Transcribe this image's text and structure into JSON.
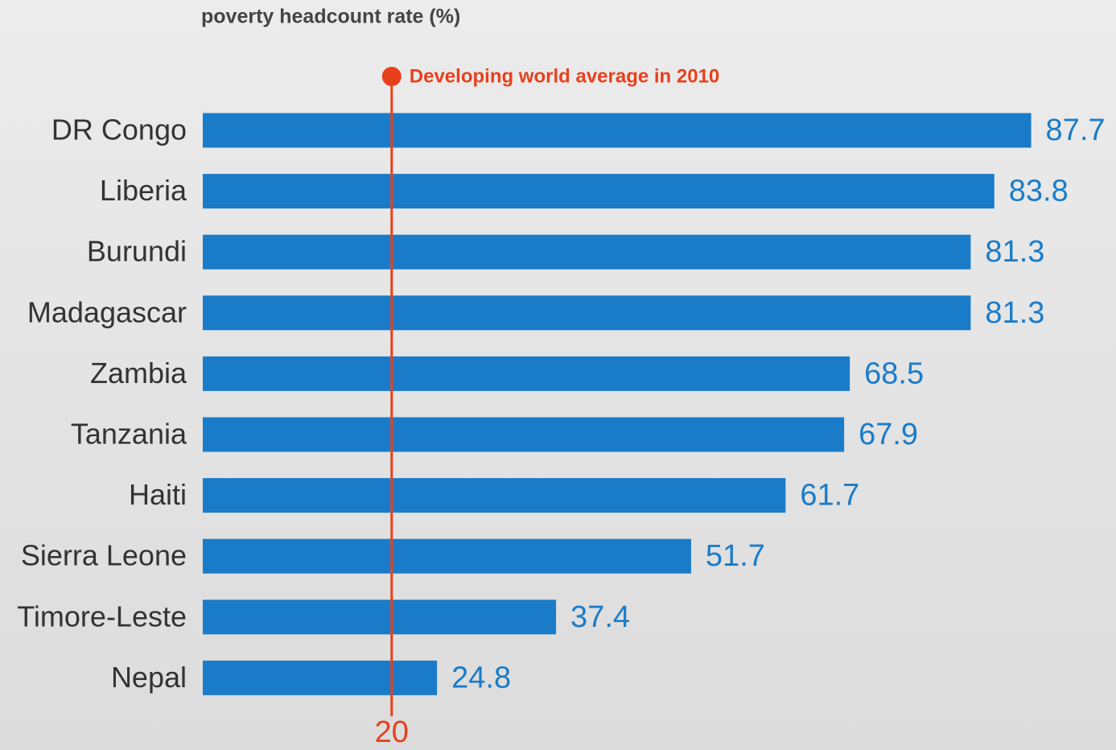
{
  "chart_data": {
    "type": "bar",
    "orientation": "horizontal",
    "title": "poverty headcount rate (%)",
    "categories": [
      "DR Congo",
      "Liberia",
      "Burundi",
      "Madagascar",
      "Zambia",
      "Tanzania",
      "Haiti",
      "Sierra Leone",
      "Timore-Leste",
      "Nepal"
    ],
    "values": [
      87.7,
      83.8,
      81.3,
      81.3,
      68.5,
      67.9,
      61.7,
      51.7,
      37.4,
      24.8
    ],
    "color": "#1a7cc9",
    "xlim": [
      0,
      96
    ],
    "reference_line": {
      "value": 20,
      "annotation": "Developing world average in 2010",
      "color": "#e8401c"
    }
  }
}
